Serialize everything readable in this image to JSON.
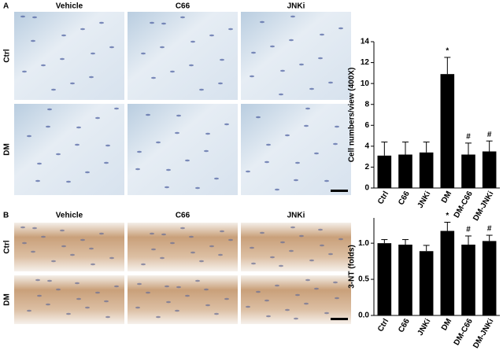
{
  "panels": [
    {
      "label": "A",
      "columns": [
        "Vehicle",
        "C66",
        "JNKi"
      ],
      "rows": [
        "Ctrl",
        "DM"
      ]
    },
    {
      "label": "B",
      "columns": [
        "Vehicle",
        "C66",
        "JNKi"
      ],
      "rows": [
        "Ctrl",
        "DM"
      ]
    }
  ],
  "chart_data": [
    {
      "type": "bar",
      "ylabel": "Cell numbers/view (400X)",
      "categories": [
        "Ctrl",
        "C66",
        "JNKi",
        "DM",
        "DM-C66",
        "DM-JNKi"
      ],
      "values": [
        3.1,
        3.2,
        3.4,
        10.9,
        3.2,
        3.5
      ],
      "errors": [
        1.3,
        1.2,
        1.0,
        1.6,
        1.1,
        1.0
      ],
      "color": "#000000",
      "ylim": [
        0,
        14
      ],
      "yticks": [
        0,
        2,
        4,
        6,
        8,
        10,
        12,
        14
      ],
      "annotations": [
        {
          "category": "DM",
          "text": "*"
        },
        {
          "category": "DM-C66",
          "text": "#"
        },
        {
          "category": "DM-JNKi",
          "text": "#"
        }
      ]
    },
    {
      "type": "bar",
      "ylabel": "3-NT (folds)",
      "categories": [
        "Ctrl",
        "C66",
        "JNKi",
        "DM",
        "DM-C66",
        "DM-JNKi"
      ],
      "values": [
        1.0,
        0.98,
        0.89,
        1.17,
        0.98,
        1.03
      ],
      "errors": [
        0.05,
        0.07,
        0.08,
        0.12,
        0.12,
        0.08
      ],
      "color": "#000000",
      "ylim": [
        0,
        1.35
      ],
      "yticks": [
        {
          "value": 0,
          "label": "0.0"
        },
        {
          "value": 0.5,
          "label": "0.5"
        },
        {
          "value": 1,
          "label": "1.0"
        }
      ],
      "annotations": [
        {
          "category": "DM",
          "text": "*"
        },
        {
          "category": "DM-C66",
          "text": "#"
        },
        {
          "category": "DM-JNKi",
          "text": "#"
        }
      ]
    }
  ]
}
